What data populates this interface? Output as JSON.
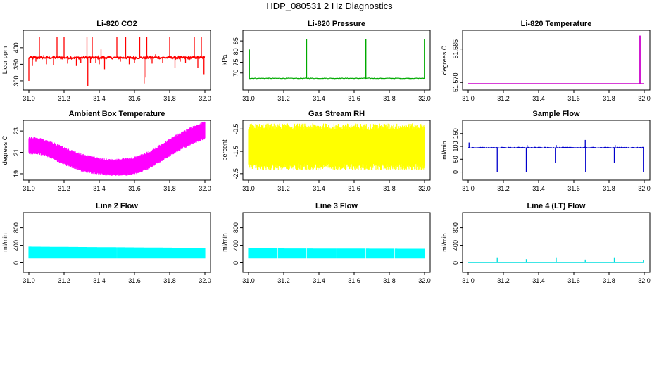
{
  "page": {
    "title": "HDP_080531  2 Hz Diagnostics"
  },
  "chart_data": [
    {
      "id": "co2",
      "type": "line",
      "title": "Li-820 CO2",
      "ylabel": "Licor ppm",
      "xlabel": "",
      "color": "#ff0000",
      "xlim": [
        31.0,
        32.0
      ],
      "ylim": [
        285,
        440
      ],
      "xticks": [
        "31.0",
        "31.2",
        "31.4",
        "31.6",
        "31.8",
        "32.0"
      ],
      "yticks": [
        "300",
        "350",
        "400"
      ],
      "series": [
        {
          "baseline": 370,
          "noise": 3,
          "spikes": [
            [
              31.0,
              -70
            ],
            [
              31.02,
              -25
            ],
            [
              31.04,
              -12
            ],
            [
              31.06,
              62
            ],
            [
              31.085,
              8
            ],
            [
              31.1,
              -20
            ],
            [
              31.14,
              -22
            ],
            [
              31.16,
              62
            ],
            [
              31.2,
              62
            ],
            [
              31.22,
              -18
            ],
            [
              31.27,
              -25
            ],
            [
              31.295,
              -15
            ],
            [
              31.33,
              62
            ],
            [
              31.335,
              -85
            ],
            [
              31.35,
              -15
            ],
            [
              31.36,
              62
            ],
            [
              31.38,
              -15
            ],
            [
              31.4,
              -20
            ],
            [
              31.41,
              25
            ],
            [
              31.43,
              -35
            ],
            [
              31.5,
              62
            ],
            [
              31.52,
              -12
            ],
            [
              31.55,
              62
            ],
            [
              31.57,
              -20
            ],
            [
              31.6,
              -15
            ],
            [
              31.63,
              62
            ],
            [
              31.655,
              -78
            ],
            [
              31.665,
              -60
            ],
            [
              31.67,
              62
            ],
            [
              31.7,
              -18
            ],
            [
              31.72,
              10
            ],
            [
              31.76,
              -15
            ],
            [
              31.8,
              62
            ],
            [
              31.83,
              -30
            ],
            [
              31.86,
              -12
            ],
            [
              31.89,
              -15
            ],
            [
              31.94,
              62
            ],
            [
              31.96,
              -30
            ],
            [
              31.98,
              62
            ],
            [
              31.995,
              -50
            ]
          ]
        }
      ]
    },
    {
      "id": "pressure",
      "type": "line",
      "title": "Li-820 Pressure",
      "ylabel": "kPa",
      "xlabel": "",
      "color": "#00aa00",
      "xlim": [
        31.0,
        32.0
      ],
      "ylim": [
        64,
        88
      ],
      "xticks": [
        "31.0",
        "31.2",
        "31.4",
        "31.6",
        "31.8",
        "32.0"
      ],
      "yticks": [
        "70",
        "75",
        "80",
        "85"
      ],
      "series": [
        {
          "baseline": 67.5,
          "noise": 0.15,
          "spikes": [
            [
              31.005,
              13.5
            ],
            [
              31.33,
              18.5
            ],
            [
              31.665,
              18.5
            ],
            [
              31.667,
              18.5
            ],
            [
              31.999,
              18.5
            ]
          ]
        }
      ]
    },
    {
      "id": "temp",
      "type": "line",
      "title": "Li-820 Temperature",
      "ylabel": "degrees C",
      "xlabel": "",
      "color": "#cc00cc",
      "xlim": [
        31.0,
        32.0
      ],
      "ylim": [
        51.5685,
        51.5915
      ],
      "xticks": [
        "31.0",
        "31.2",
        "31.4",
        "31.6",
        "31.8",
        "32.0"
      ],
      "yticks": [
        "51.570",
        "51.585"
      ],
      "series": [
        {
          "baseline": 51.5695,
          "noise": 0,
          "spikes": [
            [
              31.975,
              0.0215
            ],
            [
              31.977,
              0.0215
            ]
          ]
        }
      ]
    },
    {
      "id": "box",
      "type": "area",
      "title": "Ambient Box Temperature",
      "ylabel": "degrees C",
      "xlabel": "",
      "color": "#ff00ff",
      "xlim": [
        31.0,
        32.0
      ],
      "ylim": [
        18.8,
        23.6
      ],
      "xticks": [
        "31.0",
        "31.2",
        "31.4",
        "31.6",
        "31.8",
        "32.0"
      ],
      "yticks": [
        "19",
        "21",
        "23"
      ],
      "series": [
        {
          "x": [
            31.0,
            31.05,
            31.1,
            31.15,
            31.2,
            31.25,
            31.3,
            31.35,
            31.4,
            31.45,
            31.5,
            31.55,
            31.6,
            31.65,
            31.7,
            31.75,
            31.8,
            31.85,
            31.9,
            31.95,
            32.0
          ],
          "low": [
            21.0,
            21.0,
            20.8,
            20.4,
            20.0,
            19.7,
            19.4,
            19.2,
            19.1,
            19.0,
            19.0,
            19.0,
            19.1,
            19.4,
            19.8,
            20.3,
            20.8,
            21.3,
            21.7,
            22.1,
            22.4
          ],
          "high": [
            22.3,
            22.2,
            22.0,
            21.7,
            21.3,
            21.0,
            20.7,
            20.5,
            20.3,
            20.2,
            20.2,
            20.3,
            20.4,
            20.7,
            21.1,
            21.6,
            22.1,
            22.6,
            23.0,
            23.4,
            23.7
          ]
        }
      ]
    },
    {
      "id": "rh",
      "type": "area",
      "title": "Gas Stream RH",
      "ylabel": "percent",
      "xlabel": "",
      "color": "#ffff00",
      "xlim": [
        31.0,
        32.0
      ],
      "ylim": [
        -2.6,
        -0.3
      ],
      "xticks": [
        "31.0",
        "31.2",
        "31.4",
        "31.6",
        "31.8",
        "32.0"
      ],
      "yticks": [
        "-0.5",
        "-1.5",
        "-2.5"
      ],
      "series": [
        {
          "x": [
            31.0,
            32.0
          ],
          "low": [
            -2.05,
            -2.05
          ],
          "high": [
            -0.55,
            -0.55
          ],
          "spread": 0.3
        }
      ]
    },
    {
      "id": "sample",
      "type": "line",
      "title": "Sample Flow",
      "ylabel": "ml/min",
      "xlabel": "",
      "color": "#0000cc",
      "xlim": [
        31.0,
        32.0
      ],
      "ylim": [
        -15,
        185
      ],
      "xticks": [
        "31.0",
        "31.2",
        "31.4",
        "31.6",
        "31.8",
        "32.0"
      ],
      "yticks": [
        "0",
        "50",
        "100",
        "150"
      ],
      "series": [
        {
          "baseline": 95,
          "noise": 1.5,
          "spikes": [
            [
              31.005,
              20
            ],
            [
              31.165,
              -95
            ],
            [
              31.33,
              -95
            ],
            [
              31.335,
              10
            ],
            [
              31.495,
              -60
            ],
            [
              31.5,
              10
            ],
            [
              31.665,
              30
            ],
            [
              31.667,
              -95
            ],
            [
              31.83,
              -60
            ],
            [
              31.835,
              10
            ],
            [
              31.995,
              -95
            ]
          ]
        }
      ]
    },
    {
      "id": "line2",
      "type": "area",
      "title": "Line 2 Flow",
      "ylabel": "ml/min",
      "xlabel": "",
      "color": "#00ffff",
      "xlim": [
        31.0,
        32.0
      ],
      "ylim": [
        -120,
        1050
      ],
      "xticks": [
        "31.0",
        "31.2",
        "31.4",
        "31.6",
        "31.8",
        "32.0"
      ],
      "yticks": [
        "0",
        "400",
        "800"
      ],
      "series": [
        {
          "x": [
            31.0,
            32.0
          ],
          "low": [
            100,
            100
          ],
          "high": [
            370,
            340
          ],
          "spread": 0,
          "gaps": [
            31.165,
            31.33,
            31.5,
            31.665,
            31.83
          ]
        }
      ]
    },
    {
      "id": "line3",
      "type": "area",
      "title": "Line 3 Flow",
      "ylabel": "ml/min",
      "xlabel": "",
      "color": "#00ffff",
      "xlim": [
        31.0,
        32.0
      ],
      "ylim": [
        -120,
        1050
      ],
      "xticks": [
        "31.0",
        "31.2",
        "31.4",
        "31.6",
        "31.8",
        "32.0"
      ],
      "yticks": [
        "0",
        "400",
        "800"
      ],
      "series": [
        {
          "x": [
            31.0,
            32.0
          ],
          "low": [
            100,
            100
          ],
          "high": [
            330,
            320
          ],
          "spread": 0,
          "gaps": [
            31.165,
            31.33,
            31.5,
            31.665,
            31.83
          ]
        }
      ]
    },
    {
      "id": "line4",
      "type": "line",
      "title": "Line 4 (LT) Flow",
      "ylabel": "ml/min",
      "xlabel": "",
      "color": "#00dddd",
      "xlim": [
        31.0,
        32.0
      ],
      "ylim": [
        -120,
        1050
      ],
      "xticks": [
        "31.0",
        "31.2",
        "31.4",
        "31.6",
        "31.8",
        "32.0"
      ],
      "yticks": [
        "0",
        "400",
        "800"
      ],
      "series": [
        {
          "baseline": 5,
          "noise": 0,
          "spikes": [
            [
              31.165,
              120
            ],
            [
              31.33,
              80
            ],
            [
              31.5,
              120
            ],
            [
              31.665,
              70
            ],
            [
              31.83,
              120
            ],
            [
              31.995,
              60
            ]
          ]
        }
      ]
    }
  ]
}
